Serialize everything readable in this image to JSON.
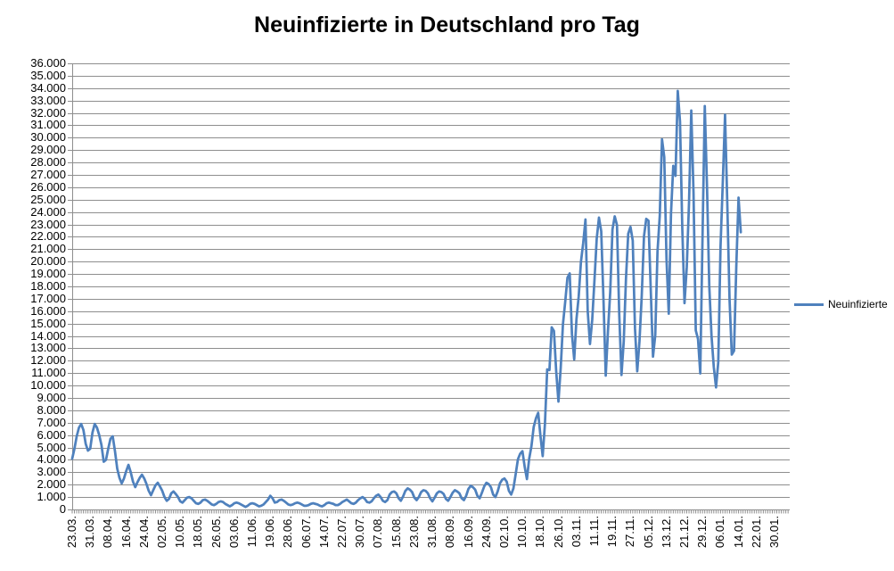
{
  "header": {
    "title": "Neuinfizierte in Deutschland pro Tag"
  },
  "colors": {
    "series": "#4F81BD",
    "gridline": "#8E8E8E",
    "axis": "#8E8E8E",
    "text": "#000000",
    "background": "#FFFFFF"
  },
  "chart_data": {
    "type": "line",
    "title": "Neuinfizierte in Deutschland pro Tag",
    "xlabel": "",
    "ylabel": "",
    "grid": true,
    "legend_position": "right",
    "y_axis": {
      "min": 0,
      "max": 36000,
      "step": 1000,
      "tick_labels": [
        "0",
        "1.000",
        "2.000",
        "3.000",
        "4.000",
        "5.000",
        "6.000",
        "7.000",
        "8.000",
        "9.000",
        "10.000",
        "11.000",
        "12.000",
        "13.000",
        "14.000",
        "15.000",
        "16.000",
        "17.000",
        "18.000",
        "19.000",
        "20.000",
        "21.000",
        "22.000",
        "23.000",
        "24.000",
        "25.000",
        "26.000",
        "27.000",
        "28.000",
        "29.000",
        "30.000",
        "31.000",
        "32.000",
        "33.000",
        "34.000",
        "35.000",
        "36.000"
      ]
    },
    "x_axis": {
      "tick_labels": [
        "23.03.",
        "31.03.",
        "08.04.",
        "16.04.",
        "24.04.",
        "02.05.",
        "10.05.",
        "18.05.",
        "26.05.",
        "03.06.",
        "11.06.",
        "19.06.",
        "28.06.",
        "06.07.",
        "14.07.",
        "22.07.",
        "30.07.",
        "07.08.",
        "15.08.",
        "23.08.",
        "31.08.",
        "08.09.",
        "16.09.",
        "24.09.",
        "02.10.",
        "10.10.",
        "18.10.",
        "26.10.",
        "03.11.",
        "11.11.",
        "19.11.",
        "27.11.",
        "05.12.",
        "13.12.",
        "21.12.",
        "29.12.",
        "06.01.",
        "14.01.",
        "22.01.",
        "30.01."
      ],
      "label_every_n_categories": 8,
      "first_category": "23.03.",
      "last_data_category": "15.01."
    },
    "series": [
      {
        "name": "Neuinfizierte",
        "color": "#4F81BD",
        "values": [
          4100,
          4900,
          5900,
          6600,
          6900,
          6400,
          5300,
          4750,
          4900,
          6200,
          6900,
          6600,
          6000,
          5200,
          3850,
          4000,
          4900,
          5700,
          5900,
          4700,
          3300,
          2550,
          2100,
          2500,
          3100,
          3600,
          3000,
          2250,
          1800,
          2200,
          2550,
          2800,
          2500,
          2050,
          1500,
          1150,
          1550,
          1950,
          2150,
          1850,
          1500,
          1000,
          700,
          850,
          1300,
          1450,
          1250,
          1000,
          650,
          550,
          750,
          950,
          1000,
          900,
          700,
          500,
          450,
          550,
          750,
          800,
          700,
          550,
          400,
          350,
          450,
          600,
          650,
          600,
          450,
          350,
          250,
          350,
          500,
          550,
          500,
          400,
          300,
          200,
          300,
          450,
          500,
          450,
          350,
          250,
          300,
          400,
          600,
          800,
          1100,
          900,
          550,
          600,
          750,
          800,
          700,
          550,
          400,
          350,
          400,
          500,
          550,
          500,
          400,
          300,
          300,
          350,
          450,
          500,
          450,
          400,
          300,
          250,
          350,
          500,
          550,
          500,
          450,
          350,
          350,
          450,
          600,
          700,
          800,
          650,
          500,
          450,
          550,
          750,
          900,
          1000,
          850,
          600,
          550,
          650,
          900,
          1100,
          1200,
          1000,
          700,
          600,
          750,
          1200,
          1400,
          1450,
          1300,
          900,
          700,
          1050,
          1500,
          1700,
          1600,
          1400,
          950,
          750,
          1000,
          1400,
          1550,
          1500,
          1300,
          900,
          650,
          950,
          1300,
          1450,
          1400,
          1250,
          850,
          700,
          1000,
          1350,
          1550,
          1450,
          1300,
          900,
          750,
          1100,
          1650,
          1900,
          1800,
          1600,
          1100,
          900,
          1350,
          1850,
          2150,
          2050,
          1800,
          1200,
          1000,
          1450,
          2100,
          2400,
          2500,
          2250,
          1500,
          1200,
          1700,
          2850,
          4050,
          4500,
          4700,
          3450,
          2450,
          4100,
          5100,
          6650,
          7350,
          7800,
          5950,
          4300,
          6900,
          11300,
          11250,
          14700,
          14400,
          11150,
          8700,
          11400,
          14950,
          16750,
          18700,
          19050,
          14150,
          12100,
          15350,
          17200,
          19990,
          21500,
          23400,
          16000,
          13350,
          15300,
          18500,
          21850,
          23550,
          22450,
          16950,
          10800,
          14400,
          17550,
          22600,
          23650,
          22950,
          15750,
          10850,
          13550,
          18650,
          22250,
          22800,
          21700,
          14600,
          11150,
          13600,
          17250,
          22050,
          23450,
          23300,
          17750,
          12332,
          14054,
          20815,
          23679,
          29875,
          28438,
          20200,
          15800,
          23900,
          27728,
          26923,
          33777,
          31300,
          22750,
          16650,
          19550,
          24750,
          32195,
          25550,
          14450,
          13750,
          10976,
          22000,
          32552,
          26000,
          18000,
          14000,
          11500,
          9847,
          11897,
          21237,
          26391,
          31849,
          24694,
          16946,
          12497,
          12802,
          19600,
          25164,
          22368
        ]
      }
    ]
  }
}
